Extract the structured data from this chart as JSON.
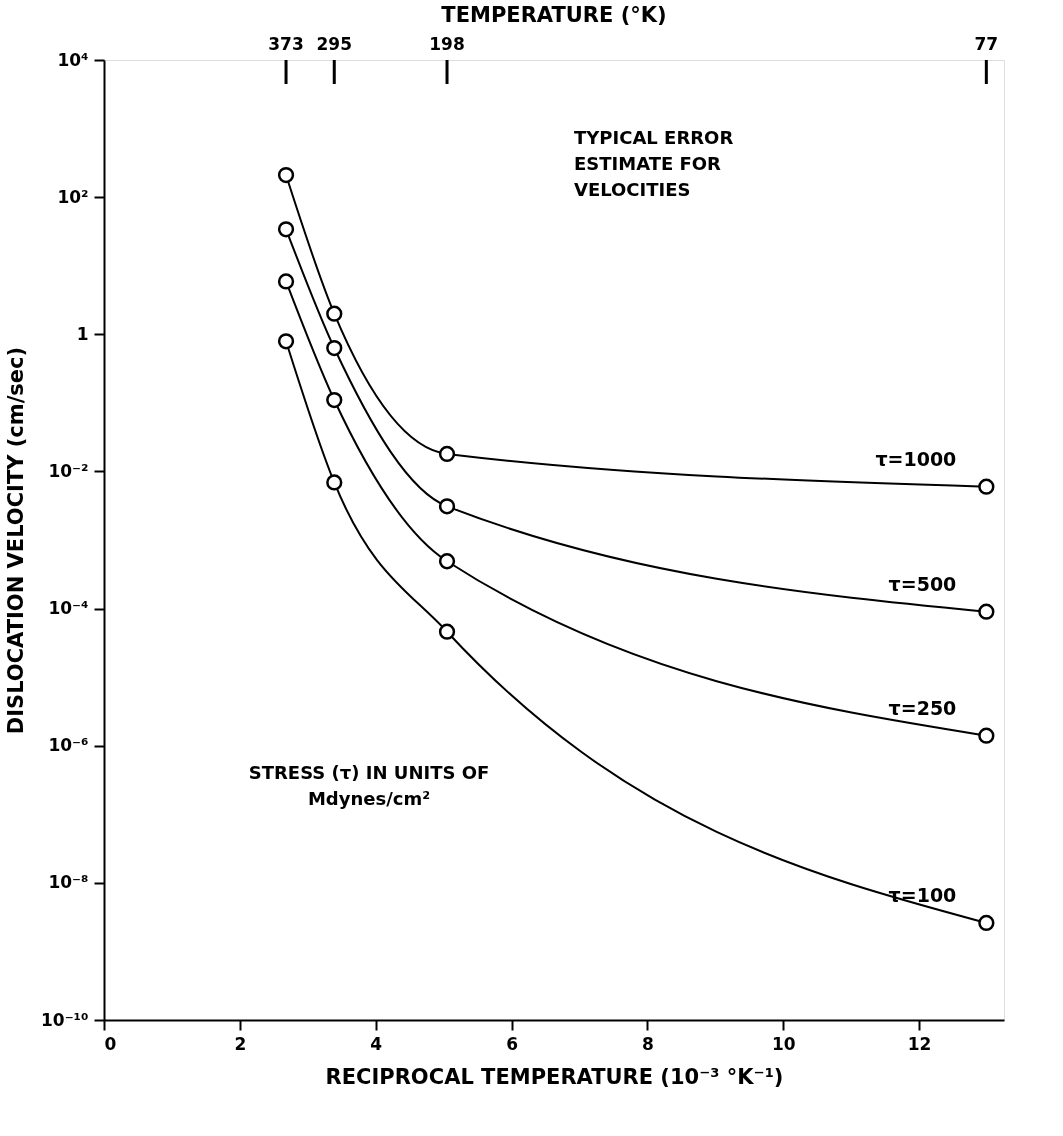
{
  "chart_data": {
    "type": "line",
    "xlabel": "RECIPROCAL TEMPERATURE (10⁻³ °K⁻¹)",
    "ylabel": "DISLOCATION VELOCITY (cm/sec)",
    "x": [
      2.68,
      3.39,
      5.05,
      12.99
    ],
    "series": [
      {
        "name": "τ=1000",
        "color": "#000000",
        "values": [
          210,
          2.0,
          0.018,
          0.006
        ]
      },
      {
        "name": "τ=500",
        "color": "#000000",
        "values": [
          34,
          0.63,
          0.0031,
          9e-05
        ]
      },
      {
        "name": "τ=250",
        "color": "#000000",
        "values": [
          5.9,
          0.11,
          0.00049,
          1.4e-06
        ]
      },
      {
        "name": "τ=100",
        "color": "#000000",
        "values": [
          0.79,
          0.0069,
          4.6e-05,
          2.6e-09
        ]
      }
    ],
    "xlim": [
      0,
      13.25
    ],
    "xticks": [
      0,
      2,
      4,
      6,
      8,
      10,
      12
    ],
    "ylim": [
      1e-10,
      10000
    ],
    "yticks": [
      {
        "value": 10000,
        "label": "10⁴"
      },
      {
        "value": 100,
        "label": "10²"
      },
      1,
      {
        "value": 0.01,
        "label": "10⁻²"
      },
      {
        "value": 0.0001,
        "label": "10⁻⁴"
      },
      {
        "value": 1e-06,
        "label": "10⁻⁶"
      },
      {
        "value": 1e-08,
        "label": "10⁻⁸"
      },
      {
        "value": 1e-10,
        "label": "10⁻¹⁰"
      }
    ],
    "log": "y",
    "grid": false,
    "legend": false,
    "marker": "circle",
    "line_style": "solid",
    "annotations": [
      "TYPICAL ERROR\nESTIMATE FOR\nVELOCITIES",
      "STRESS (τ) IN UNITS OF\nMdynes/cm²",
      "TEMPERATURE (°K)",
      {
        "text": "373",
        "x": 2.68
      },
      {
        "text": "295",
        "x": 3.39
      },
      {
        "text": "198",
        "x": 5.05
      },
      {
        "text": "77",
        "x": 12.99
      }
    ]
  }
}
